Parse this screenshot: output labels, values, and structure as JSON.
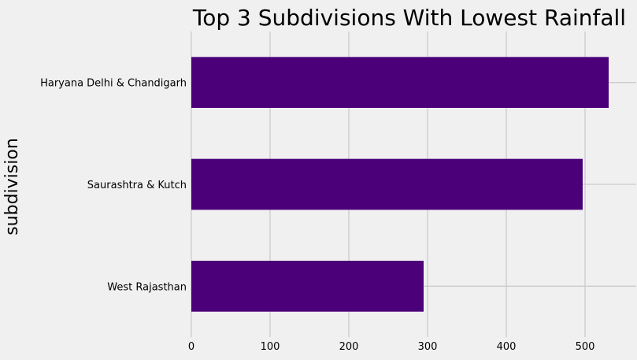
{
  "chart_data": {
    "type": "bar",
    "orientation": "horizontal",
    "title": "Top 3 Subdivisions With Lowest Rainfall",
    "xlabel": "",
    "ylabel": "subdivision",
    "categories": [
      "Haryana Delhi & Chandigarh",
      "Saurashtra & Kutch",
      "West Rajasthan"
    ],
    "values": [
      530,
      497,
      295
    ],
    "xlim": [
      0,
      565
    ],
    "xticks": [
      0,
      100,
      200,
      300,
      400,
      500
    ],
    "grid": true,
    "legend": "none"
  },
  "colors": {
    "bar": "#4b0079",
    "background": "#f0f0f0",
    "grid": "#cbcbcb"
  }
}
